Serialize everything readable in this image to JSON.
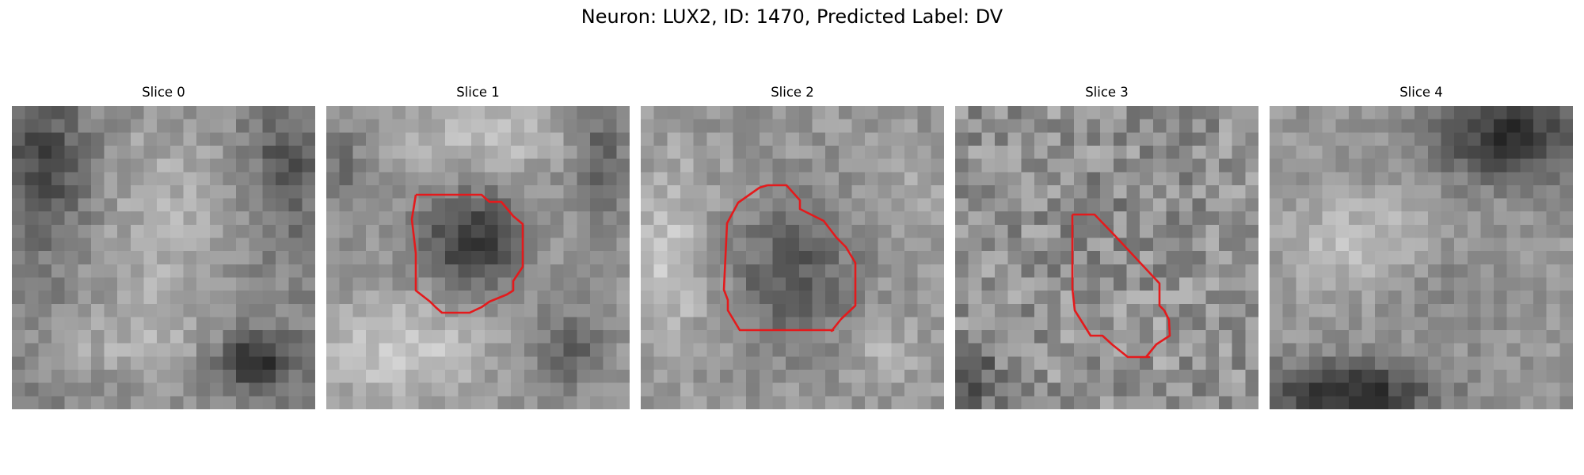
{
  "figure": {
    "title": "Neuron: LUX2, ID: 1470, Predicted Label: DV",
    "contour_color": "#e41a1c",
    "colormap": "gray"
  },
  "panels": [
    {
      "label": "Slice 0",
      "has_contour": false
    },
    {
      "label": "Slice 1",
      "has_contour": true
    },
    {
      "label": "Slice 2",
      "has_contour": true
    },
    {
      "label": "Slice 3",
      "has_contour": true
    },
    {
      "label": "Slice 4",
      "has_contour": false
    }
  ]
}
